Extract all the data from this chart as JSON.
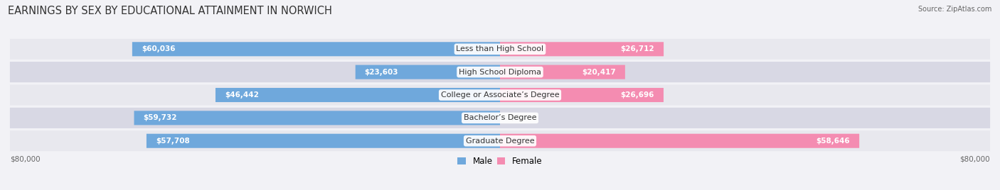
{
  "title": "Earnings by Sex by Educational Attainment in Norwich",
  "source": "Source: ZipAtlas.com",
  "categories": [
    "Less than High School",
    "High School Diploma",
    "College or Associate’s Degree",
    "Bachelor’s Degree",
    "Graduate Degree"
  ],
  "male_values": [
    60036,
    23603,
    46442,
    59732,
    57708
  ],
  "female_values": [
    26712,
    20417,
    26696,
    0,
    58646
  ],
  "male_color": "#6fa8dc",
  "female_color": "#f48cb1",
  "male_label": "Male",
  "female_label": "Female",
  "max_value": 80000,
  "row_colors": [
    "#e8e8ee",
    "#d8d8e4"
  ],
  "title_fontsize": 10.5,
  "label_fontsize": 8.0,
  "value_fontsize": 7.5,
  "axis_label": "$80,000",
  "bg_color": "#f2f2f6"
}
